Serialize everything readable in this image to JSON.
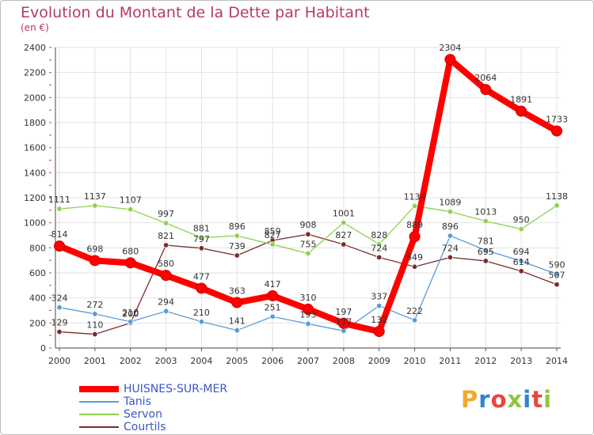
{
  "title": "Evolution du Montant de la Dette par Habitant",
  "subtitle": "(en €)",
  "logo": {
    "text": "Proxiti",
    "colors": [
      "#f2a92a",
      "#2f84d6",
      "#e9473a",
      "#8ec63f",
      "#2f84d6",
      "#e9473a",
      "#8ec63f"
    ]
  },
  "chart_data": {
    "type": "line",
    "title": "Evolution du Montant de la Dette par Habitant",
    "ylabel": "(en €)",
    "xlabel": "",
    "ylim": [
      0,
      2400
    ],
    "yticks": [
      0,
      200,
      400,
      600,
      800,
      1000,
      1200,
      1400,
      1600,
      1800,
      2000,
      2200,
      2400
    ],
    "grid": true,
    "legend_position": "bottom-left",
    "categories": [
      "2000",
      "2001",
      "2002",
      "2003",
      "2004",
      "2005",
      "2006",
      "2007",
      "2008",
      "2009",
      "2010",
      "2011",
      "2012",
      "2013",
      "2014"
    ],
    "series": [
      {
        "name": "HUISNES-SUR-MER",
        "color": "#ff0000",
        "values": [
          814,
          698,
          680,
          580,
          477,
          363,
          417,
          310,
          197,
          132,
          889,
          2304,
          2064,
          1891,
          1733
        ],
        "labels": [
          "814",
          "698",
          "680",
          "580",
          "477",
          "363",
          "417",
          "310",
          "197",
          "132",
          "889",
          "2304",
          "2064",
          "1891",
          "1733"
        ]
      },
      {
        "name": "Tanis",
        "color": "#5b9bd5",
        "values": [
          324,
          272,
          210,
          294,
          210,
          141,
          251,
          193,
          137,
          337,
          222,
          896,
          781,
          694,
          590
        ],
        "labels": [
          "324",
          "272",
          "210",
          "294",
          "210",
          "141",
          "251",
          "193",
          "137",
          "337",
          "222",
          "896",
          "781",
          "694",
          "590"
        ]
      },
      {
        "name": "Servon",
        "color": "#8fd14f",
        "values": [
          1111,
          1137,
          1107,
          997,
          881,
          896,
          827,
          755,
          1001,
          828,
          1134,
          1089,
          1013,
          950,
          1138
        ],
        "labels": [
          "1111",
          "1137",
          "1107",
          "997",
          "881",
          "896",
          "827",
          "755",
          "1001",
          "828",
          "1134",
          "1089",
          "1013",
          "950",
          "1138"
        ]
      },
      {
        "name": "Courtils",
        "color": "#7a2d2d",
        "values": [
          129,
          110,
          200,
          821,
          797,
          739,
          859,
          908,
          827,
          724,
          649,
          724,
          695,
          614,
          507
        ],
        "labels": [
          "129",
          "110",
          "200",
          "821",
          "797",
          "739",
          "859",
          "908",
          "827",
          "724",
          "649",
          "724",
          "695",
          "614",
          "507"
        ]
      }
    ]
  }
}
